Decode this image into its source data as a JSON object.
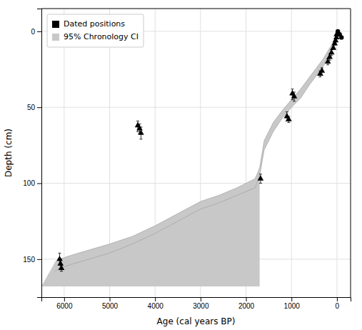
{
  "chart_data": {
    "type": "scatter",
    "xlabel": "Age (cal years BP)",
    "ylabel": "Depth (cm)",
    "xlim": [
      6500,
      -300
    ],
    "ylim": [
      175,
      -15
    ],
    "xticks": [
      6000,
      5000,
      4000,
      3000,
      2000,
      1000,
      0
    ],
    "yticks": [
      0,
      50,
      100,
      150
    ],
    "grid": true,
    "legend": "upper left",
    "series": [
      {
        "name": "Dated positions",
        "type": "scatter",
        "marker": "triangle",
        "color": "#000000",
        "x": [
          6100,
          6080,
          6060,
          4380,
          4340,
          4310,
          1680,
          1100,
          1060,
          980,
          940,
          370,
          330,
          200,
          160,
          120,
          80,
          50,
          30,
          10,
          5
        ],
        "values": [
          150,
          153,
          156,
          62,
          64,
          67,
          97,
          56,
          58,
          41,
          43,
          28,
          26,
          20,
          17,
          14,
          11,
          8,
          6,
          4,
          2
        ],
        "error_low": [
          4,
          3,
          2,
          3,
          3,
          4,
          3,
          3,
          2,
          3,
          3,
          2,
          2,
          2,
          2,
          2,
          1,
          1,
          1,
          1,
          1
        ],
        "error_high": [
          4,
          3,
          2,
          4,
          3,
          4,
          3,
          3,
          2,
          4,
          3,
          2,
          3,
          2,
          2,
          2,
          1,
          1,
          1,
          1,
          1
        ]
      },
      {
        "type": "scatter",
        "marker": "circle",
        "color": "#000000",
        "x": [
          -20,
          -60,
          -100
        ],
        "values": [
          0,
          2,
          4
        ]
      },
      {
        "name": "95% Chronology CI",
        "type": "area",
        "color": "#c8c8c8",
        "x": [
          6200,
          6100,
          5800,
          5000,
          4500,
          4000,
          3500,
          3000,
          2600,
          2200,
          1800,
          1700,
          1600,
          1400,
          1200,
          1000,
          800,
          600,
          400,
          300,
          200,
          100,
          50,
          20,
          0
        ],
        "upper": [
          152,
          150,
          147,
          140,
          135,
          128,
          120,
          112,
          108,
          103,
          97,
          90,
          72,
          60,
          52,
          45,
          38,
          30,
          22,
          18,
          13,
          8,
          5,
          3,
          0
        ],
        "lower": [
          158,
          156,
          153,
          146,
          140,
          133,
          125,
          117,
          113,
          108,
          103,
          95,
          78,
          66,
          57,
          50,
          44,
          35,
          27,
          23,
          17,
          12,
          8,
          6,
          3
        ],
        "bottom": 168,
        "bottom_left_x": 6500,
        "bottom_right_x": 1700
      }
    ]
  }
}
